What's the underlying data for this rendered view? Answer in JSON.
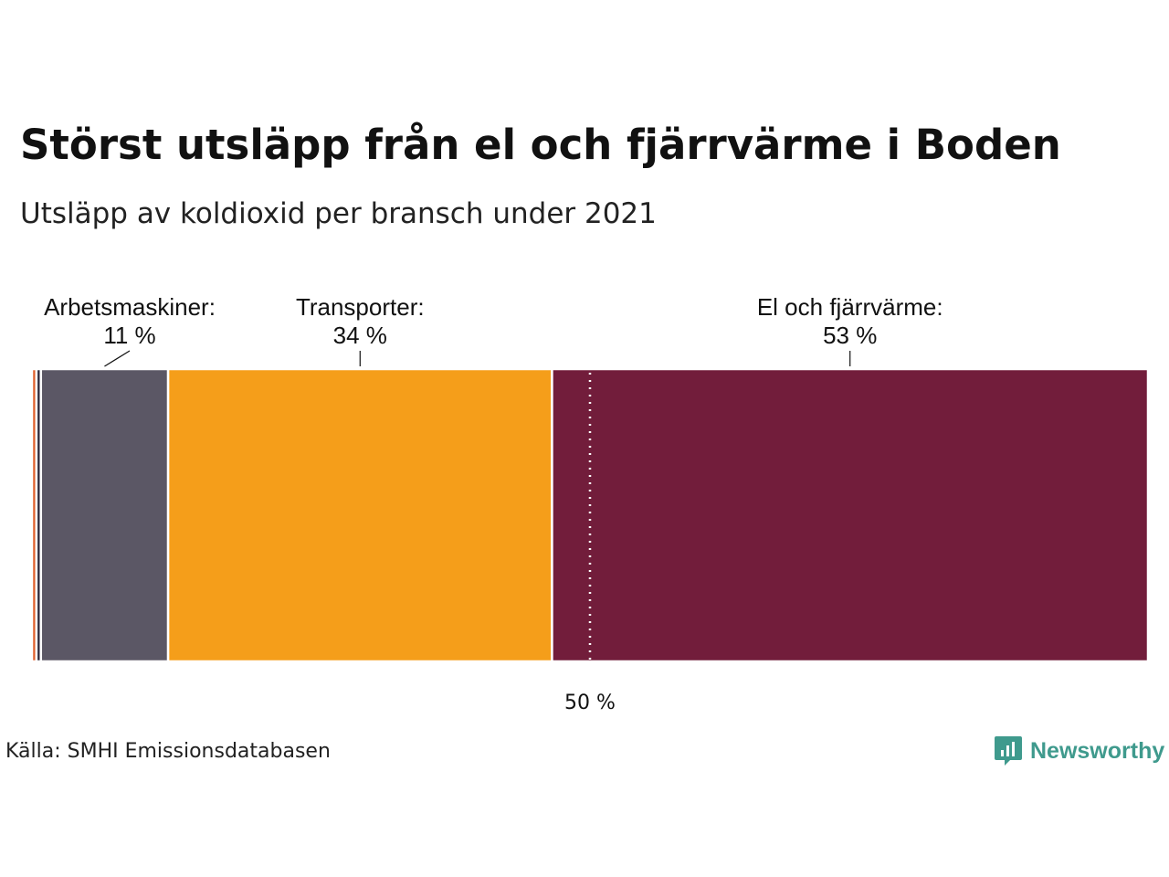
{
  "title": "Störst utsläpp från el och fjärrvärme i Boden",
  "subtitle": "Utsläpp av koldioxid per bransch under 2021",
  "source": "Källa: SMHI Emissionsdatabasen",
  "brand": {
    "name": "Newsworthy",
    "color": "#3f9a8d"
  },
  "chart_data": {
    "type": "stacked-bar-100",
    "title": "Störst utsläpp från el och fjärrvärme i Boden",
    "subtitle": "Utsläpp av koldioxid per bransch under 2021",
    "unit": "%",
    "reference_line": {
      "value": 50,
      "label": "50 %"
    },
    "segments": [
      {
        "value": 0.4,
        "color": "#e0602e",
        "label": "",
        "value_label": ""
      },
      {
        "value": 0.4,
        "color": "#2f2a3c",
        "label": "",
        "value_label": ""
      },
      {
        "value": 11.4,
        "color": "#5b5765",
        "label": "Arbetsmaskiner:",
        "value_label": "11 %"
      },
      {
        "value": 34.4,
        "color": "#f59e1a",
        "label": "Transporter:",
        "value_label": "34 %"
      },
      {
        "value": 53.4,
        "color": "#721d3b",
        "label": "El och fjärrvärme:",
        "value_label": "53 %"
      }
    ]
  }
}
